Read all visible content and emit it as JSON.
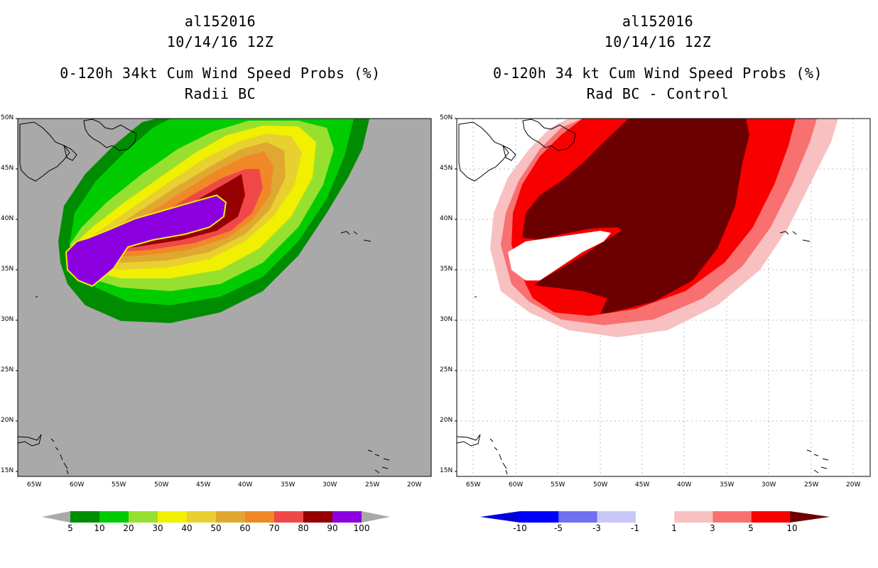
{
  "left_panel": {
    "storm_id": "al152016",
    "date": "10/14/16 12Z",
    "title": "0-120h 34kt Cum Wind Speed Probs (%)",
    "subtitle": "Radii BC",
    "background_color": "#a9a9a9",
    "colorbar": {
      "labels": [
        "5",
        "10",
        "20",
        "30",
        "40",
        "50",
        "60",
        "70",
        "80",
        "90",
        "100"
      ],
      "colors": [
        "#008c00",
        "#00cc00",
        "#98e030",
        "#f0f000",
        "#e8d030",
        "#e0a830",
        "#f08828",
        "#f04848",
        "#960000",
        "#8c00e0"
      ]
    }
  },
  "right_panel": {
    "storm_id": "al152016",
    "date": "10/14/16 12Z",
    "title": "0-120h 34 kt Cum Wind Speed Probs (%)",
    "subtitle": "Rad BC - Control",
    "background_color": "#ffffff",
    "colorbar": {
      "labels": [
        "-10",
        "-5",
        "-3",
        "-1",
        "1",
        "3",
        "5",
        "10"
      ],
      "colors": [
        "#0000dc",
        "#0000ff",
        "#7070f0",
        "#c8c8f8",
        "#ffffff",
        "#f8c0c0",
        "#f87070",
        "#f80000",
        "#6c0000"
      ]
    }
  },
  "axes": {
    "lat_labels": [
      "50N",
      "45N",
      "40N",
      "35N",
      "30N",
      "25N",
      "20N",
      "15N"
    ],
    "lon_labels": [
      "65W",
      "60W",
      "55W",
      "50W",
      "45W",
      "40W",
      "35W",
      "30W",
      "25W",
      "20W"
    ]
  }
}
